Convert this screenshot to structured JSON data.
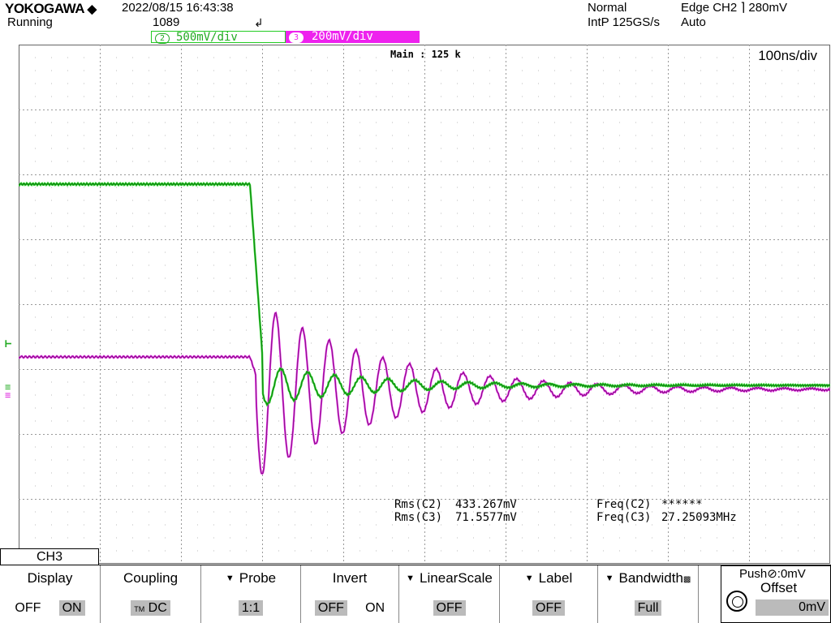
{
  "header": {
    "brand": "YOKOGAWA",
    "run_state": "Running",
    "datetime": "2022/08/15 16:43:38",
    "acq_count": "1089",
    "trig_mode": "Normal",
    "sample_info": "IntP 125GS/s",
    "trig_source": "Edge CH2",
    "trig_level": "280mV",
    "trig_auto": "Auto"
  },
  "channels": [
    {
      "id": "2",
      "scale": "500mV/div",
      "color": "#22cc22"
    },
    {
      "id": "3",
      "scale": "200mV/div",
      "color": "#dd22dd"
    }
  ],
  "main_label": "Main : 125 k",
  "timebase": "100ns/div",
  "measurements": {
    "rms_c2_label": "Rms(C2)",
    "rms_c2": "433.267mV",
    "rms_c3_label": "Rms(C3)",
    "rms_c3": "71.5577mV",
    "freq_c2_label": "Freq(C2)",
    "freq_c2": "******",
    "freq_c3_label": "Freq(C3)",
    "freq_c3": "27.25093MHz"
  },
  "menu": {
    "channel_tab": "CH3",
    "display": {
      "title": "Display",
      "off": "OFF",
      "on": "ON"
    },
    "coupling": {
      "title": "Coupling",
      "value": "DC"
    },
    "probe": {
      "title": "Probe",
      "value": "1:1"
    },
    "invert": {
      "title": "Invert",
      "off": "OFF",
      "on": "ON"
    },
    "linearscale": {
      "title": "LinearScale",
      "value": "OFF"
    },
    "label": {
      "title": "Label",
      "value": "OFF"
    },
    "bandwidth": {
      "title": "Bandwidth",
      "value": "Full"
    },
    "offset": {
      "push": "Push",
      "push_value": ":0mV",
      "title": "Offset",
      "value": "0mV"
    }
  },
  "colors": {
    "ch2": "#22cc22",
    "ch3": "#dd22dd",
    "grid": "#999999"
  }
}
